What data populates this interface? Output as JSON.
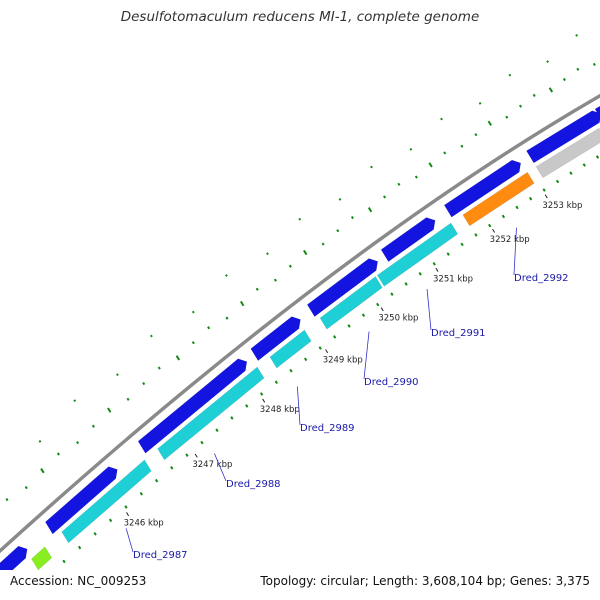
{
  "title": "Desulfotomaculum reducens MI-1, complete genome",
  "footer": {
    "accession": "Accession: NC_009253",
    "summary": "Topology: circular; Length: 3,608,104 bp; Genes: 3,375"
  },
  "colors": {
    "forward_cds": "#1414e0",
    "reverse_cds": "#1ecfd6",
    "highlight_cds": "#ff8c10",
    "green_cds": "#88ee22",
    "grey_cds": "#c8c8c8",
    "dark_grey_cds": "#707070",
    "backbone": "#8a8a8a",
    "gc_ticks": "#138a13",
    "label_line": "#3333cc"
  },
  "ticks": [
    {
      "label": "3246 kbp"
    },
    {
      "label": "3247 kbp"
    },
    {
      "label": "3248 kbp"
    },
    {
      "label": "3249 kbp"
    },
    {
      "label": "3250 kbp"
    },
    {
      "label": "3251 kbp"
    },
    {
      "label": "3252 kbp"
    },
    {
      "label": "3253 kbp"
    }
  ],
  "genes": [
    {
      "name": "Dred_2987"
    },
    {
      "name": "Dred_2988"
    },
    {
      "name": "Dred_2989"
    },
    {
      "name": "Dred_2990"
    },
    {
      "name": "Dred_2991"
    },
    {
      "name": "Dred_2992"
    }
  ]
}
